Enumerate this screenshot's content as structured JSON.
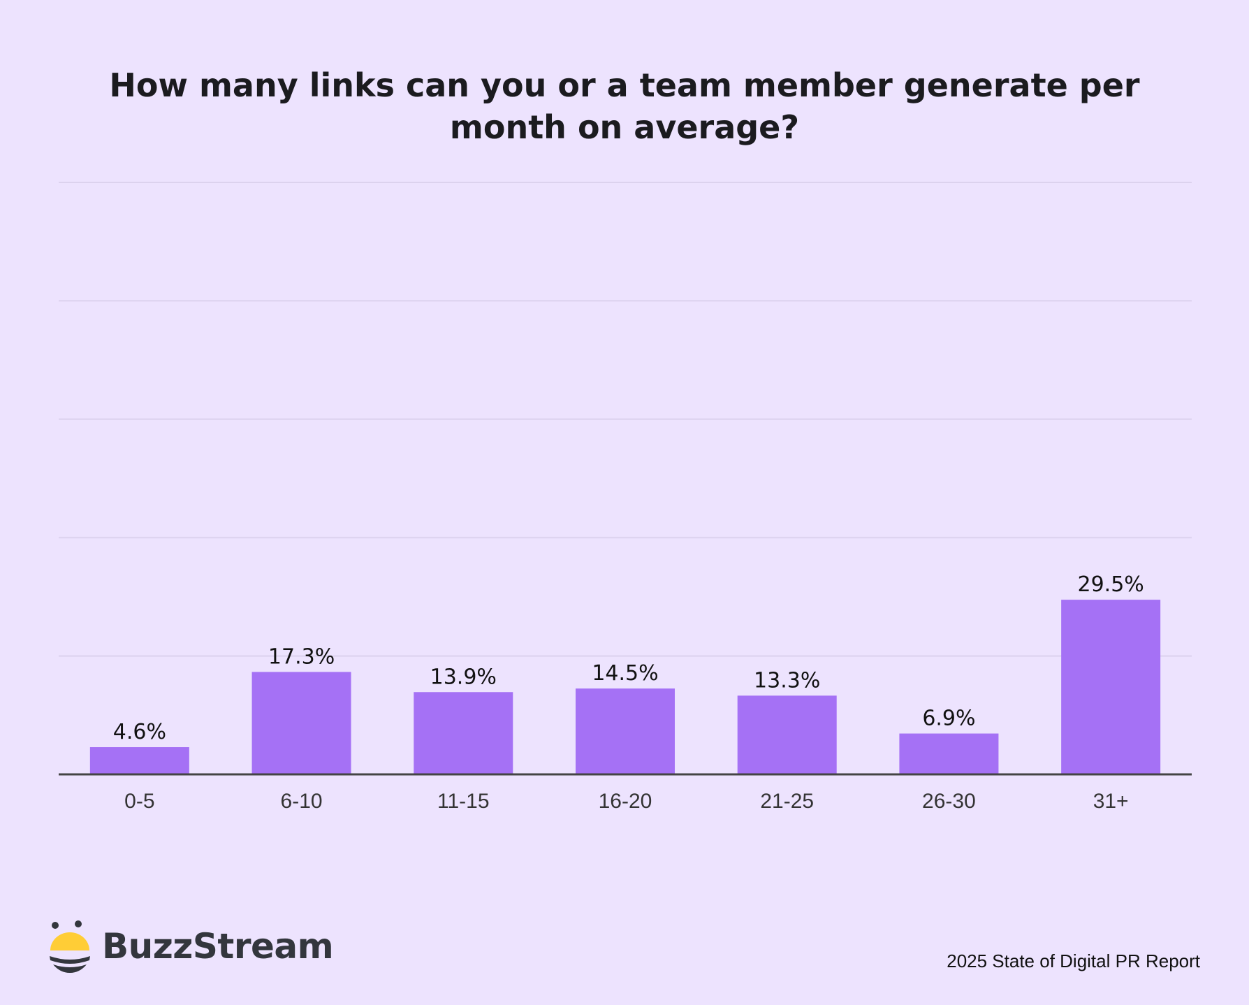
{
  "brand": {
    "name": "BuzzStream",
    "accent": "#ffcd36",
    "dark": "#33363d"
  },
  "footer": {
    "report": "2025 State of Digital PR Report"
  },
  "chart_data": {
    "type": "bar",
    "title": "How many links can you or a team member generate per month on average?",
    "xlabel": "",
    "ylabel": "",
    "categories": [
      "0-5",
      "6-10",
      "11-15",
      "16-20",
      "21-25",
      "26-30",
      "31+"
    ],
    "values": [
      4.6,
      17.3,
      13.9,
      14.5,
      13.3,
      6.9,
      29.5
    ],
    "labels": [
      "4.6%",
      "17.3%",
      "13.9%",
      "14.5%",
      "13.3%",
      "6.9%",
      "29.5%"
    ],
    "ylim": [
      0,
      100
    ],
    "gridlines": [
      20,
      40,
      60,
      80,
      100
    ],
    "grid": true,
    "y_tick_labels_shown": false,
    "bar_color": "#a571f5",
    "grid_color": "#dcd2ee",
    "axis_color": "#444444"
  }
}
